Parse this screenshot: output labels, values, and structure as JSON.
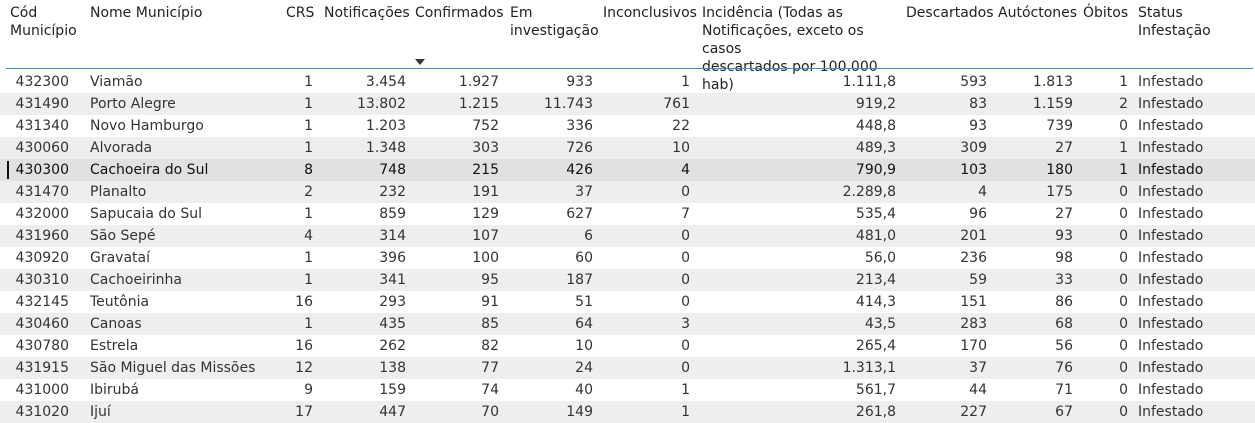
{
  "table": {
    "headers": {
      "cod": "Cód\nMunicípio",
      "nome": "Nome Município",
      "crs": "CRS",
      "notificacoes": "Notificações",
      "confirmados": "Confirmados",
      "em_investigacao": "Em\ninvestigação",
      "inconclusivos": "Inconclusivos",
      "incidencia": "Incidência (Todas as\nNotificações, exceto os casos\ndescartados por 100.000 hab)",
      "descartados": "Descartados",
      "autoctones": "Autóctones",
      "obitos": "Óbitos",
      "status": "Status Infestação"
    },
    "sorted_column": "Confirmados",
    "selected_row_index": 4,
    "rows": [
      {
        "cod": "432300",
        "nome": "Viamão",
        "crs": "1",
        "notificacoes": "3.454",
        "confirmados": "1.927",
        "em_investigacao": "933",
        "inconclusivos": "1",
        "incidencia": "1.111,8",
        "descartados": "593",
        "autoctones": "1.813",
        "obitos": "1",
        "status": "Infestado"
      },
      {
        "cod": "431490",
        "nome": "Porto Alegre",
        "crs": "1",
        "notificacoes": "13.802",
        "confirmados": "1.215",
        "em_investigacao": "11.743",
        "inconclusivos": "761",
        "incidencia": "919,2",
        "descartados": "83",
        "autoctones": "1.159",
        "obitos": "2",
        "status": "Infestado"
      },
      {
        "cod": "431340",
        "nome": "Novo Hamburgo",
        "crs": "1",
        "notificacoes": "1.203",
        "confirmados": "752",
        "em_investigacao": "336",
        "inconclusivos": "22",
        "incidencia": "448,8",
        "descartados": "93",
        "autoctones": "739",
        "obitos": "0",
        "status": "Infestado"
      },
      {
        "cod": "430060",
        "nome": "Alvorada",
        "crs": "1",
        "notificacoes": "1.348",
        "confirmados": "303",
        "em_investigacao": "726",
        "inconclusivos": "10",
        "incidencia": "489,3",
        "descartados": "309",
        "autoctones": "27",
        "obitos": "1",
        "status": "Infestado"
      },
      {
        "cod": "430300",
        "nome": "Cachoeira do Sul",
        "crs": "8",
        "notificacoes": "748",
        "confirmados": "215",
        "em_investigacao": "426",
        "inconclusivos": "4",
        "incidencia": "790,9",
        "descartados": "103",
        "autoctones": "180",
        "obitos": "1",
        "status": "Infestado"
      },
      {
        "cod": "431470",
        "nome": "Planalto",
        "crs": "2",
        "notificacoes": "232",
        "confirmados": "191",
        "em_investigacao": "37",
        "inconclusivos": "0",
        "incidencia": "2.289,8",
        "descartados": "4",
        "autoctones": "175",
        "obitos": "0",
        "status": "Infestado"
      },
      {
        "cod": "432000",
        "nome": "Sapucaia do Sul",
        "crs": "1",
        "notificacoes": "859",
        "confirmados": "129",
        "em_investigacao": "627",
        "inconclusivos": "7",
        "incidencia": "535,4",
        "descartados": "96",
        "autoctones": "27",
        "obitos": "0",
        "status": "Infestado"
      },
      {
        "cod": "431960",
        "nome": "São Sepé",
        "crs": "4",
        "notificacoes": "314",
        "confirmados": "107",
        "em_investigacao": "6",
        "inconclusivos": "0",
        "incidencia": "481,0",
        "descartados": "201",
        "autoctones": "93",
        "obitos": "0",
        "status": "Infestado"
      },
      {
        "cod": "430920",
        "nome": "Gravataí",
        "crs": "1",
        "notificacoes": "396",
        "confirmados": "100",
        "em_investigacao": "60",
        "inconclusivos": "0",
        "incidencia": "56,0",
        "descartados": "236",
        "autoctones": "98",
        "obitos": "0",
        "status": "Infestado"
      },
      {
        "cod": "430310",
        "nome": "Cachoeirinha",
        "crs": "1",
        "notificacoes": "341",
        "confirmados": "95",
        "em_investigacao": "187",
        "inconclusivos": "0",
        "incidencia": "213,4",
        "descartados": "59",
        "autoctones": "33",
        "obitos": "0",
        "status": "Infestado"
      },
      {
        "cod": "432145",
        "nome": "Teutônia",
        "crs": "16",
        "notificacoes": "293",
        "confirmados": "91",
        "em_investigacao": "51",
        "inconclusivos": "0",
        "incidencia": "414,3",
        "descartados": "151",
        "autoctones": "86",
        "obitos": "0",
        "status": "Infestado"
      },
      {
        "cod": "430460",
        "nome": "Canoas",
        "crs": "1",
        "notificacoes": "435",
        "confirmados": "85",
        "em_investigacao": "64",
        "inconclusivos": "3",
        "incidencia": "43,5",
        "descartados": "283",
        "autoctones": "68",
        "obitos": "0",
        "status": "Infestado"
      },
      {
        "cod": "430780",
        "nome": "Estrela",
        "crs": "16",
        "notificacoes": "262",
        "confirmados": "82",
        "em_investigacao": "10",
        "inconclusivos": "0",
        "incidencia": "265,4",
        "descartados": "170",
        "autoctones": "56",
        "obitos": "0",
        "status": "Infestado"
      },
      {
        "cod": "431915",
        "nome": "São Miguel das Missões",
        "crs": "12",
        "notificacoes": "138",
        "confirmados": "77",
        "em_investigacao": "24",
        "inconclusivos": "0",
        "incidencia": "1.313,1",
        "descartados": "37",
        "autoctones": "76",
        "obitos": "0",
        "status": "Infestado"
      },
      {
        "cod": "431000",
        "nome": "Ibirubá",
        "crs": "9",
        "notificacoes": "159",
        "confirmados": "74",
        "em_investigacao": "40",
        "inconclusivos": "1",
        "incidencia": "561,7",
        "descartados": "44",
        "autoctones": "71",
        "obitos": "0",
        "status": "Infestado"
      },
      {
        "cod": "431020",
        "nome": "Ijuí",
        "crs": "17",
        "notificacoes": "447",
        "confirmados": "70",
        "em_investigacao": "149",
        "inconclusivos": "1",
        "incidencia": "261,8",
        "descartados": "227",
        "autoctones": "67",
        "obitos": "0",
        "status": "Infestado"
      }
    ]
  },
  "colors": {
    "header_border": "#3b8fd1",
    "row_alt": "#eeeeee",
    "row_selected": "#e1e1e1"
  }
}
